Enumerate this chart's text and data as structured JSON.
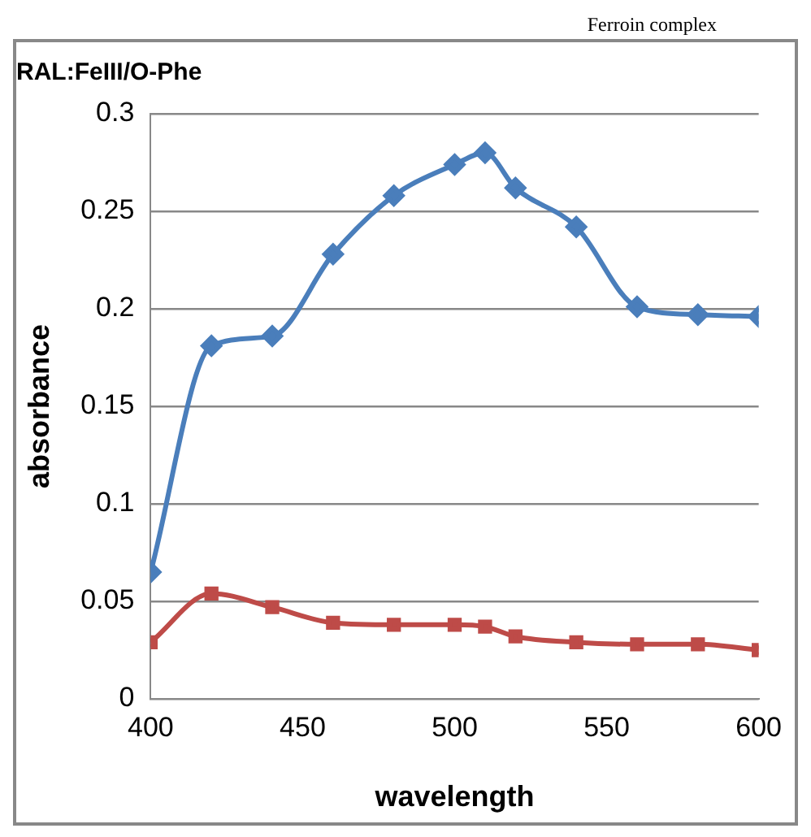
{
  "chart_data": {
    "type": "line",
    "title": "RAL:FeIII/O-Phe",
    "xlabel": "wavelength",
    "ylabel": "absorbance",
    "annotations": [
      "Ferroin complex"
    ],
    "x": [
      400,
      420,
      440,
      460,
      480,
      500,
      510,
      520,
      540,
      560,
      580,
      600
    ],
    "series": [
      {
        "color": "#4a7ebb",
        "marker": "diamond",
        "values": [
          0.065,
          0.181,
          0.186,
          0.228,
          0.258,
          0.274,
          0.28,
          0.262,
          0.242,
          0.201,
          0.197,
          0.196
        ]
      },
      {
        "color": "#be4b48",
        "marker": "square",
        "values": [
          0.029,
          0.054,
          0.047,
          0.039,
          0.038,
          0.038,
          0.037,
          0.032,
          0.029,
          0.028,
          0.028,
          0.025
        ]
      }
    ],
    "xlim": [
      400,
      600
    ],
    "xticks": [
      400,
      450,
      500,
      550,
      600
    ],
    "ylim": [
      0,
      0.3
    ],
    "yticks": [
      0,
      0.05,
      0.1,
      0.15,
      0.2,
      0.25,
      0.3
    ],
    "grid": "y",
    "legend": false
  }
}
